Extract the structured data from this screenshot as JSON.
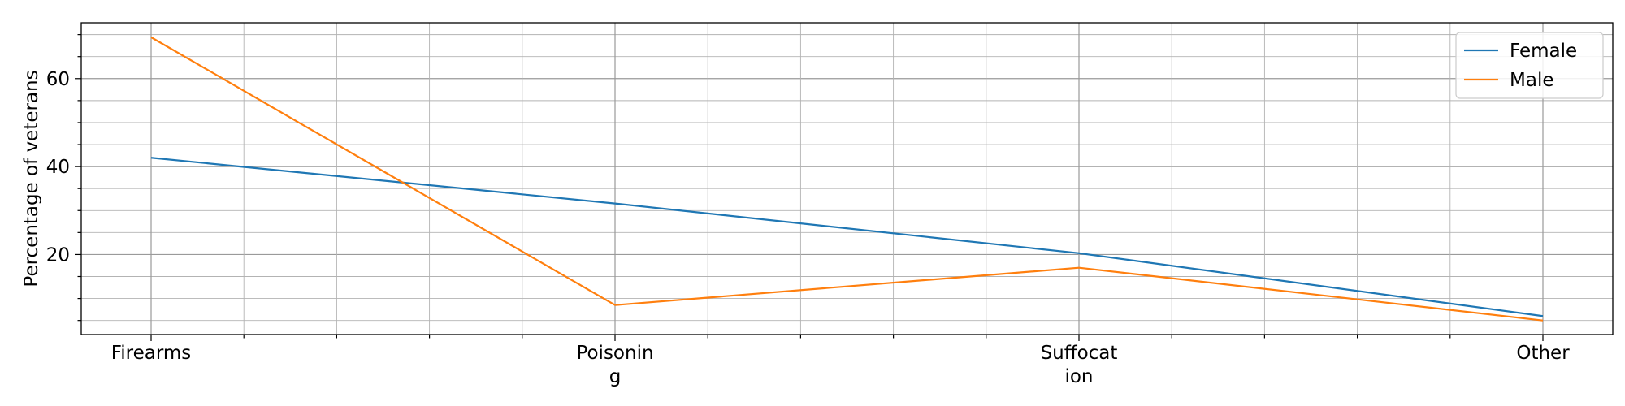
{
  "chart_data": {
    "type": "line",
    "title": "",
    "xlabel": "",
    "ylabel": "Percentage of veterans",
    "categories": [
      "Firearms",
      "Poisoning",
      "Suffocation",
      "Other"
    ],
    "category_lines": [
      [
        "Firearms"
      ],
      [
        "Poisonin",
        "g"
      ],
      [
        "Suffocat",
        "ion"
      ],
      [
        "Other"
      ]
    ],
    "series": [
      {
        "name": "Female",
        "values": [
          42.0,
          31.6,
          20.3,
          6.0
        ],
        "color": "#1f77b4"
      },
      {
        "name": "Male",
        "values": [
          69.4,
          8.5,
          17.0,
          5.0
        ],
        "color": "#ff7f0e"
      }
    ],
    "ylim": [
      1.8,
      72.7
    ],
    "yticks": [
      20,
      40,
      60
    ],
    "y_minor_step": 5,
    "x_minor_per_major": 5,
    "grid": true,
    "legend_position": "top-right"
  }
}
